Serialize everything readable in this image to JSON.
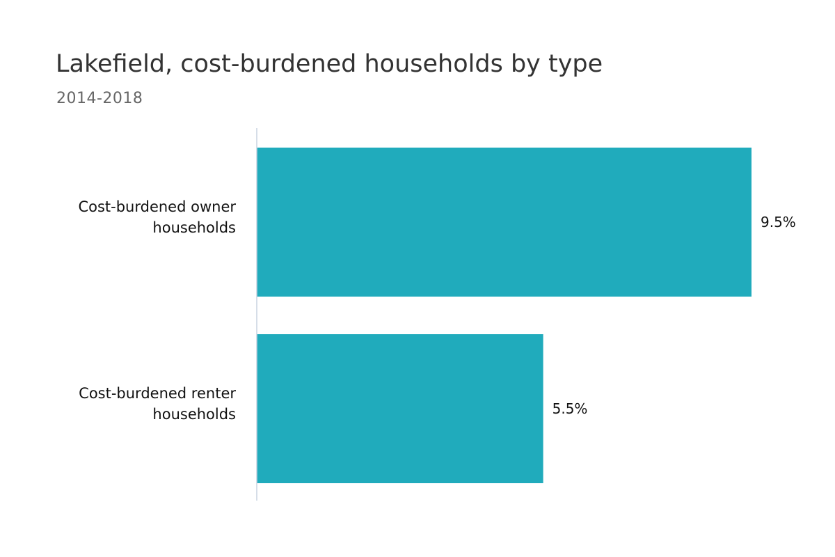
{
  "chart_data": {
    "type": "bar",
    "orientation": "horizontal",
    "title": "Lakefield, cost-burdened households by type",
    "subtitle": "2014-2018",
    "categories": [
      [
        "Cost-burdened owner",
        "households"
      ],
      [
        "Cost-burdened renter",
        "households"
      ]
    ],
    "values": [
      9.5,
      5.5
    ],
    "value_labels": [
      "9.5%",
      "5.5%"
    ],
    "xlabel": "",
    "ylabel": "",
    "xlim": [
      0,
      9.5
    ],
    "grid": false,
    "legend": "none",
    "bar_color": "#20abbc",
    "axis_color": "#c8d3e0"
  }
}
